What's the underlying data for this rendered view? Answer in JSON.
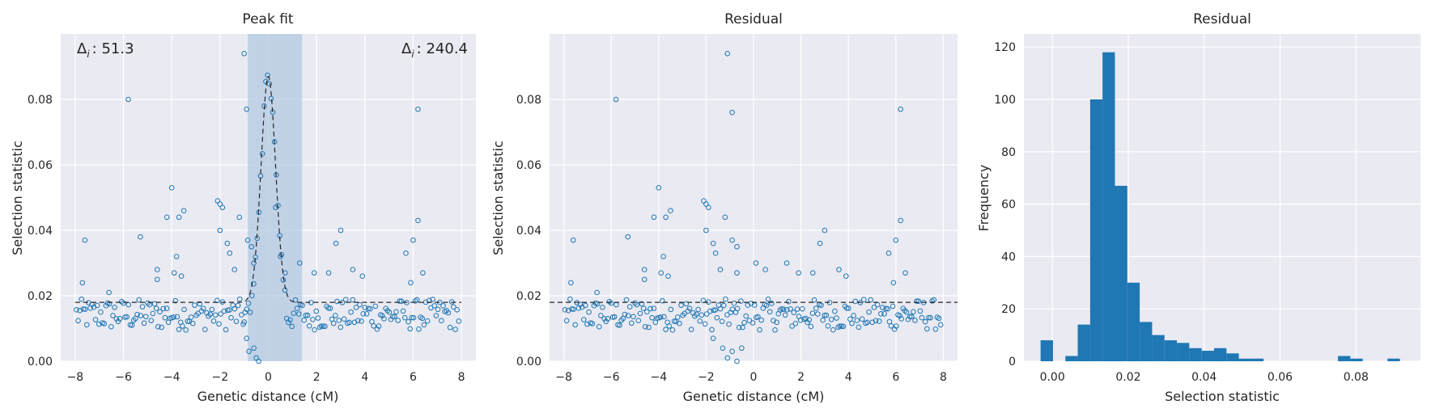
{
  "chart_data": [
    {
      "type": "scatter",
      "title": "Peak fit",
      "xlabel": "Genetic distance (cM)",
      "ylabel": "Selection statistic",
      "xlim": [
        -8.6,
        8.6
      ],
      "ylim": [
        0,
        0.1
      ],
      "xticks": [
        "−8",
        "−6",
        "−4",
        "−2",
        "0",
        "2",
        "4",
        "6",
        "8"
      ],
      "xtick_values": [
        -8,
        -6,
        -4,
        -2,
        0,
        2,
        4,
        6,
        8
      ],
      "yticks": [
        "0.00",
        "0.02",
        "0.04",
        "0.06",
        "0.08"
      ],
      "ytick_values": [
        0,
        0.02,
        0.04,
        0.06,
        0.08
      ],
      "grid": true,
      "annotations": [
        {
          "text": "Δ",
          "sub": "i",
          "value": ": 51.3",
          "position": "top-left"
        },
        {
          "text": "Δ",
          "sub": "i",
          "value": ": 240.4",
          "position": "top-right"
        }
      ],
      "highlight_span": [
        -0.85,
        1.4
      ],
      "baseline": 0.018,
      "fit_curve": {
        "x0": 0,
        "peak": 0.087,
        "base": 0.018,
        "width": 0.3
      },
      "colors": {
        "points": "#1f77b4",
        "span": "#a7c2de",
        "background": "#eaeaf2",
        "fit": "#262626"
      },
      "outliers": [
        [
          -7.6,
          0.037
        ],
        [
          -7.7,
          0.024
        ],
        [
          -6.6,
          0.021
        ],
        [
          -5.8,
          0.08
        ],
        [
          -5.3,
          0.038
        ],
        [
          -4.6,
          0.025
        ],
        [
          -4.6,
          0.028
        ],
        [
          -4.2,
          0.044
        ],
        [
          -4.0,
          0.053
        ],
        [
          -3.9,
          0.027
        ],
        [
          -3.7,
          0.044
        ],
        [
          -3.5,
          0.046
        ],
        [
          -3.8,
          0.032
        ],
        [
          -3.6,
          0.026
        ],
        [
          -2.1,
          0.049
        ],
        [
          -2.0,
          0.048
        ],
        [
          -1.9,
          0.047
        ],
        [
          -2.0,
          0.04
        ],
        [
          -1.7,
          0.036
        ],
        [
          -1.6,
          0.033
        ],
        [
          -1.4,
          0.028
        ],
        [
          -1.2,
          0.044
        ],
        [
          -1.0,
          0.094
        ],
        [
          -0.9,
          0.077
        ],
        [
          -0.85,
          0.037
        ],
        [
          -0.7,
          0.035
        ],
        [
          -0.6,
          0.03
        ],
        [
          -1.0,
          0.012
        ],
        [
          -0.9,
          0.007
        ],
        [
          -0.8,
          0.003
        ],
        [
          -0.6,
          0.004
        ],
        [
          -0.5,
          0.001
        ],
        [
          -0.4,
          0.0
        ],
        [
          0.3,
          0.047
        ],
        [
          0.5,
          0.032
        ],
        [
          0.7,
          0.027
        ],
        [
          1.3,
          0.03
        ],
        [
          1.9,
          0.027
        ],
        [
          2.5,
          0.027
        ],
        [
          2.8,
          0.036
        ],
        [
          3.0,
          0.04
        ],
        [
          3.5,
          0.028
        ],
        [
          3.9,
          0.026
        ],
        [
          5.7,
          0.033
        ],
        [
          6.0,
          0.037
        ],
        [
          6.2,
          0.043
        ],
        [
          6.2,
          0.077
        ],
        [
          6.4,
          0.027
        ],
        [
          5.9,
          0.024
        ]
      ]
    },
    {
      "type": "scatter",
      "title": "Residual",
      "xlabel": "Genetic distance (cM)",
      "ylabel": "Selection statistic",
      "xlim": [
        -8.6,
        8.6
      ],
      "ylim": [
        0,
        0.1
      ],
      "xticks": [
        "−8",
        "−6",
        "−4",
        "−2",
        "0",
        "2",
        "4",
        "6",
        "8"
      ],
      "xtick_values": [
        -8,
        -6,
        -4,
        -2,
        0,
        2,
        4,
        6,
        8
      ],
      "yticks": [
        "0.00",
        "0.02",
        "0.04",
        "0.06",
        "0.08"
      ],
      "ytick_values": [
        0,
        0.02,
        0.04,
        0.06,
        0.08
      ],
      "grid": true,
      "baseline": 0.018,
      "colors": {
        "points": "#1f77b4",
        "background": "#eaeaf2",
        "baseline": "#262626"
      },
      "outliers": [
        [
          -7.6,
          0.037
        ],
        [
          -7.7,
          0.024
        ],
        [
          -6.6,
          0.021
        ],
        [
          -5.8,
          0.08
        ],
        [
          -5.3,
          0.038
        ],
        [
          -4.6,
          0.025
        ],
        [
          -4.6,
          0.028
        ],
        [
          -4.2,
          0.044
        ],
        [
          -4.0,
          0.053
        ],
        [
          -3.9,
          0.027
        ],
        [
          -3.7,
          0.044
        ],
        [
          -3.5,
          0.046
        ],
        [
          -3.8,
          0.032
        ],
        [
          -3.6,
          0.026
        ],
        [
          -2.1,
          0.049
        ],
        [
          -2.0,
          0.048
        ],
        [
          -1.9,
          0.047
        ],
        [
          -2.0,
          0.04
        ],
        [
          -1.7,
          0.036
        ],
        [
          -1.6,
          0.033
        ],
        [
          -1.4,
          0.028
        ],
        [
          -1.2,
          0.044
        ],
        [
          -1.1,
          0.094
        ],
        [
          -0.9,
          0.076
        ],
        [
          -0.9,
          0.037
        ],
        [
          -0.7,
          0.035
        ],
        [
          -0.7,
          0.027
        ],
        [
          -1.7,
          0.007
        ],
        [
          -1.3,
          0.004
        ],
        [
          -1.1,
          0.001
        ],
        [
          -0.9,
          0.003
        ],
        [
          -0.7,
          0.0
        ],
        [
          -0.5,
          0.004
        ],
        [
          0.1,
          0.03
        ],
        [
          0.5,
          0.028
        ],
        [
          1.4,
          0.03
        ],
        [
          1.9,
          0.027
        ],
        [
          2.5,
          0.027
        ],
        [
          2.8,
          0.036
        ],
        [
          3.0,
          0.04
        ],
        [
          3.6,
          0.028
        ],
        [
          3.9,
          0.026
        ],
        [
          5.7,
          0.033
        ],
        [
          6.0,
          0.037
        ],
        [
          6.2,
          0.043
        ],
        [
          6.2,
          0.077
        ],
        [
          6.4,
          0.027
        ],
        [
          5.9,
          0.024
        ]
      ]
    },
    {
      "type": "bar",
      "title": "Residual",
      "xlabel": "Selection statistic",
      "ylabel": "Frequency",
      "xlim": [
        -0.0075,
        0.097
      ],
      "ylim": [
        0,
        125
      ],
      "xticks": [
        "0.00",
        "0.02",
        "0.04",
        "0.06",
        "0.08"
      ],
      "xtick_values": [
        0,
        0.02,
        0.04,
        0.06,
        0.08
      ],
      "yticks": [
        "0",
        "20",
        "40",
        "60",
        "80",
        "100",
        "120"
      ],
      "ytick_values": [
        0,
        20,
        40,
        60,
        80,
        100,
        120
      ],
      "grid": true,
      "bin_start": -0.0031,
      "bin_width": 0.003265,
      "values": [
        8,
        0,
        2,
        14,
        100,
        118,
        67,
        30,
        15,
        10,
        8,
        7,
        5,
        4,
        5,
        3,
        1,
        1,
        0,
        0,
        0,
        0,
        0,
        0,
        2,
        1,
        0,
        0,
        1
      ],
      "colors": {
        "bars": "#1f77b4",
        "background": "#eaeaf2"
      }
    }
  ]
}
